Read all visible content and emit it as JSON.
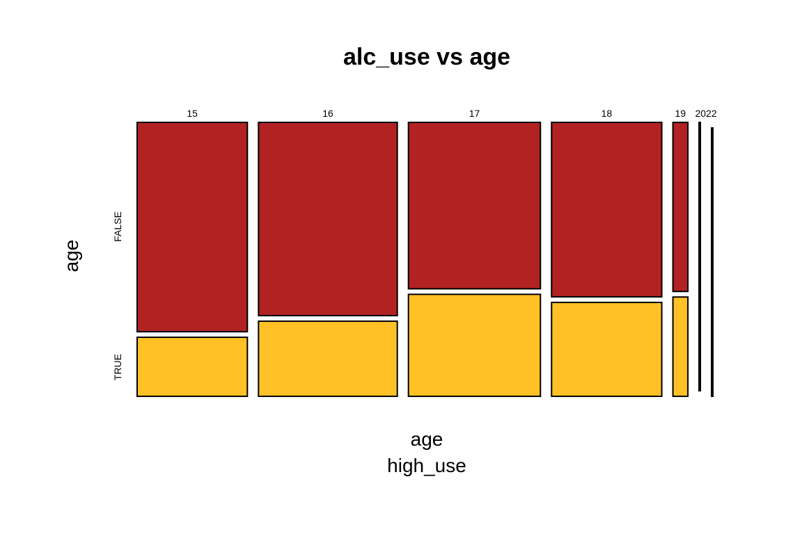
{
  "chart_data": {
    "type": "mosaic",
    "title": "alc_use vs age",
    "xlabel": "age",
    "xlabel2": "high_use",
    "ylabel": "age",
    "categories": [
      "15",
      "16",
      "17",
      "18",
      "19",
      "20",
      "22"
    ],
    "category_tick_labels": [
      "15",
      "16",
      "17",
      "18",
      "19",
      "2022"
    ],
    "counts": [
      81,
      102,
      97,
      81,
      11,
      1,
      1
    ],
    "series": [
      {
        "name": "FALSE",
        "fractions": [
          0.78,
          0.72,
          0.62,
          0.65,
          0.63,
          1.0,
          0.0
        ]
      },
      {
        "name": "TRUE",
        "fractions": [
          0.22,
          0.28,
          0.38,
          0.35,
          0.37,
          0.0,
          1.0
        ]
      }
    ],
    "row_labels": [
      "FALSE",
      "TRUE"
    ],
    "colors": {
      "FALSE": "#B22222",
      "TRUE": "#FFC125",
      "border": "#000000"
    },
    "grid": false
  }
}
